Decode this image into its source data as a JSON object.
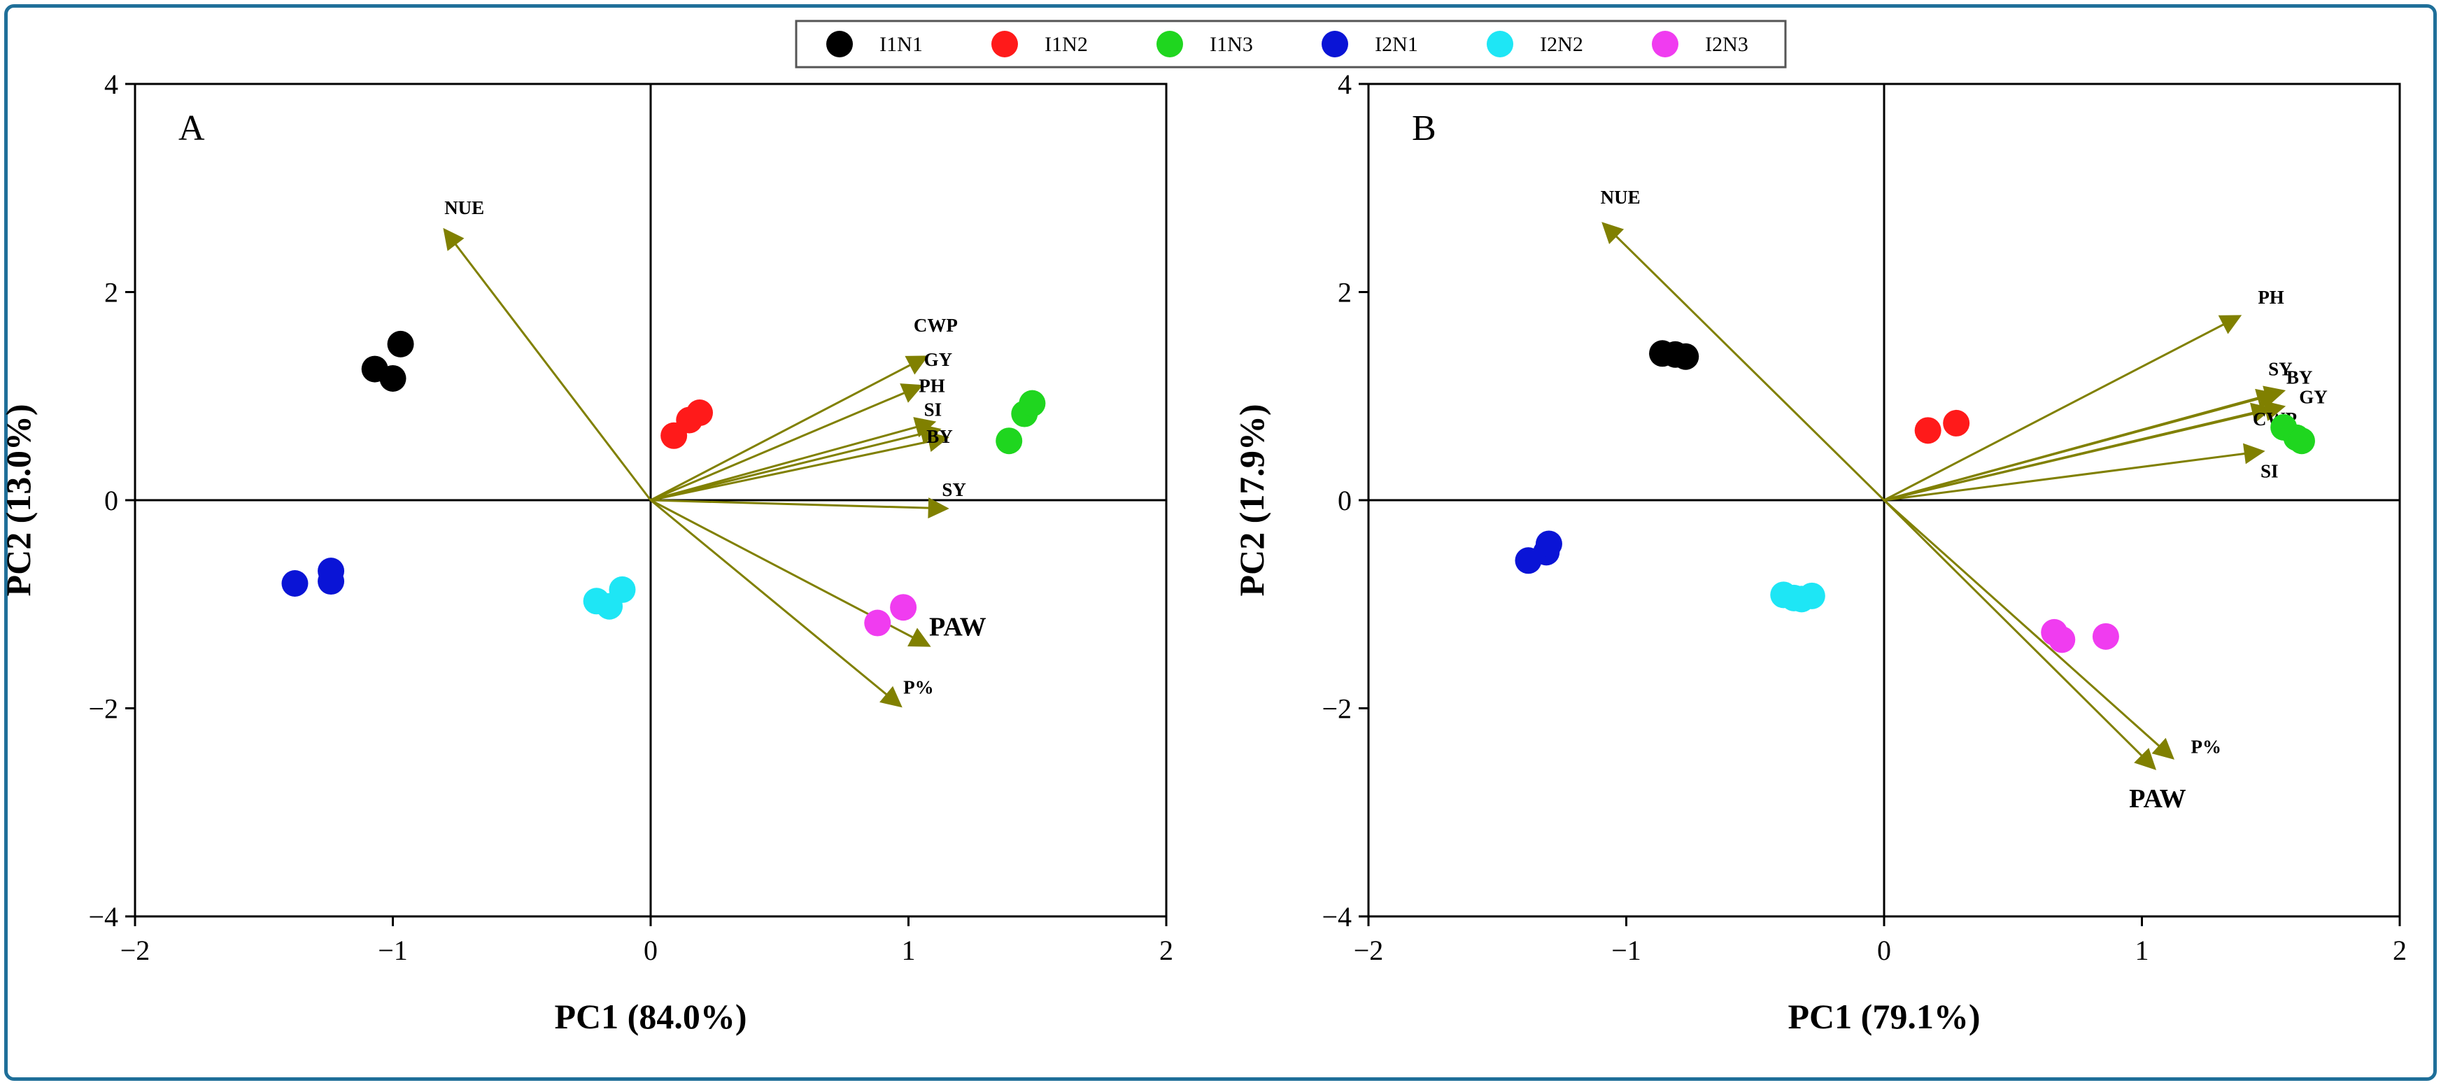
{
  "legend": [
    {
      "label": "I1N1",
      "color": "#000000"
    },
    {
      "label": "I1N2",
      "color": "#ff1a1a"
    },
    {
      "label": "I1N3",
      "color": "#1fd61f"
    },
    {
      "label": "I2N1",
      "color": "#0a14d6"
    },
    {
      "label": "I2N2",
      "color": "#1ee6f5"
    },
    {
      "label": "I2N3",
      "color": "#f03cf0"
    }
  ],
  "chart_data": [
    {
      "type": "scatter",
      "panel": "A",
      "xlabel": "PC1 (84.0%)",
      "ylabel": "PC2 (13.0%)",
      "xlim": [
        -2,
        2
      ],
      "ylim": [
        -4,
        4
      ],
      "xticks": [
        "−2",
        "−1",
        "0",
        "1",
        "2"
      ],
      "yticks": [
        "−4",
        "−2",
        "0",
        "2",
        "4"
      ],
      "vector_color": "#808000",
      "series": [
        {
          "name": "I1N1",
          "points": [
            [
              -1.07,
              1.26
            ],
            [
              -1.0,
              1.17
            ],
            [
              -0.97,
              1.5
            ]
          ]
        },
        {
          "name": "I1N2",
          "points": [
            [
              0.09,
              0.62
            ],
            [
              0.15,
              0.77
            ],
            [
              0.19,
              0.84
            ]
          ]
        },
        {
          "name": "I1N3",
          "points": [
            [
              1.39,
              0.57
            ],
            [
              1.45,
              0.83
            ],
            [
              1.48,
              0.93
            ]
          ]
        },
        {
          "name": "I2N1",
          "points": [
            [
              -1.38,
              -0.8
            ],
            [
              -1.24,
              -0.68
            ],
            [
              -1.24,
              -0.78
            ]
          ]
        },
        {
          "name": "I2N2",
          "points": [
            [
              -0.21,
              -0.97
            ],
            [
              -0.16,
              -1.02
            ],
            [
              -0.11,
              -0.86
            ]
          ]
        },
        {
          "name": "I2N3",
          "points": [
            [
              0.88,
              -1.18
            ],
            [
              0.98,
              -1.03
            ]
          ]
        }
      ],
      "vectors": [
        {
          "label": "NUE",
          "x": -0.8,
          "y": 2.6,
          "lx": -0.8,
          "ly": 2.75,
          "size": "small"
        },
        {
          "label": "CWP",
          "x": 1.07,
          "y": 1.38,
          "lx": 1.02,
          "ly": 1.62,
          "size": "small"
        },
        {
          "label": "GY",
          "x": 1.05,
          "y": 1.1,
          "lx": 1.06,
          "ly": 1.29,
          "size": "small"
        },
        {
          "label": "PH",
          "x": 1.1,
          "y": 0.75,
          "lx": 1.04,
          "ly": 1.04,
          "size": "small"
        },
        {
          "label": "SI",
          "x": 1.12,
          "y": 0.68,
          "lx": 1.06,
          "ly": 0.81,
          "size": "small"
        },
        {
          "label": "BY",
          "x": 1.15,
          "y": 0.6,
          "lx": 1.07,
          "ly": 0.55,
          "size": "small"
        },
        {
          "label": "SY",
          "x": 1.15,
          "y": -0.08,
          "lx": 1.13,
          "ly": 0.04,
          "size": "small"
        },
        {
          "label": "PAW",
          "x": 1.08,
          "y": -1.4,
          "lx": 1.08,
          "ly": -1.3,
          "size": "large"
        },
        {
          "label": "P%",
          "x": 0.97,
          "y": -1.98,
          "lx": 0.98,
          "ly": -1.86,
          "size": "small"
        }
      ]
    },
    {
      "type": "scatter",
      "panel": "B",
      "xlabel": "PC1 (79.1%)",
      "ylabel": "PC2 (17.9%)",
      "xlim": [
        -2,
        2
      ],
      "ylim": [
        -4,
        4
      ],
      "xticks": [
        "−2",
        "−1",
        "0",
        "1",
        "2"
      ],
      "yticks": [
        "−4",
        "−2",
        "0",
        "2",
        "4"
      ],
      "vector_color": "#808000",
      "series": [
        {
          "name": "I1N1",
          "points": [
            [
              -0.86,
              1.41
            ],
            [
              -0.81,
              1.4
            ],
            [
              -0.77,
              1.38
            ]
          ]
        },
        {
          "name": "I1N2",
          "points": [
            [
              0.17,
              0.67
            ],
            [
              0.28,
              0.74
            ]
          ]
        },
        {
          "name": "I1N3",
          "points": [
            [
              1.55,
              0.7
            ],
            [
              1.6,
              0.6
            ],
            [
              1.62,
              0.57
            ]
          ]
        },
        {
          "name": "I2N1",
          "points": [
            [
              -1.38,
              -0.58
            ],
            [
              -1.31,
              -0.5
            ],
            [
              -1.3,
              -0.42
            ]
          ]
        },
        {
          "name": "I2N2",
          "points": [
            [
              -0.39,
              -0.91
            ],
            [
              -0.35,
              -0.94
            ],
            [
              -0.32,
              -0.95
            ],
            [
              -0.28,
              -0.92
            ]
          ]
        },
        {
          "name": "I2N3",
          "points": [
            [
              0.66,
              -1.27
            ],
            [
              0.69,
              -1.34
            ],
            [
              0.86,
              -1.31
            ]
          ]
        }
      ],
      "vectors": [
        {
          "label": "NUE",
          "x": -1.09,
          "y": 2.66,
          "lx": -1.1,
          "ly": 2.85,
          "size": "small"
        },
        {
          "label": "PH",
          "x": 1.38,
          "y": 1.77,
          "lx": 1.45,
          "ly": 1.89,
          "size": "small"
        },
        {
          "label": "SY",
          "x": 1.52,
          "y": 1.02,
          "lx": 1.49,
          "ly": 1.2,
          "size": "small"
        },
        {
          "label": "BY",
          "x": 1.55,
          "y": 1.05,
          "lx": 1.56,
          "ly": 1.12,
          "size": "small"
        },
        {
          "label": "GY",
          "x": 1.55,
          "y": 0.9,
          "lx": 1.61,
          "ly": 0.93,
          "size": "small"
        },
        {
          "label": "CWP",
          "x": 1.5,
          "y": 0.88,
          "lx": 1.43,
          "ly": 0.72,
          "size": "small"
        },
        {
          "label": "SI",
          "x": 1.47,
          "y": 0.47,
          "lx": 1.46,
          "ly": 0.22,
          "size": "small"
        },
        {
          "label": "P%",
          "x": 1.12,
          "y": -2.48,
          "lx": 1.19,
          "ly": -2.43,
          "size": "small"
        },
        {
          "label": "PAW",
          "x": 1.05,
          "y": -2.58,
          "lx": 0.95,
          "ly": -2.95,
          "size": "large"
        }
      ]
    }
  ]
}
